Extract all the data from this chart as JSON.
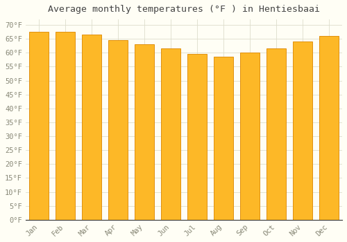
{
  "title": "Average monthly temperatures (°F ) in Hentiesbaai",
  "months": [
    "Jan",
    "Feb",
    "Mar",
    "Apr",
    "May",
    "Jun",
    "Jul",
    "Aug",
    "Sep",
    "Oct",
    "Nov",
    "Dec"
  ],
  "values": [
    67.5,
    67.5,
    66.5,
    64.5,
    63.0,
    61.5,
    59.5,
    58.5,
    60.0,
    61.5,
    64.0,
    66.0
  ],
  "bar_color": "#FDB827",
  "bar_edge_color": "#E09010",
  "background_color": "#FFFEF5",
  "plot_bg_color": "#FFFEF5",
  "grid_color": "#DDDDCC",
  "ytick_labels": [
    "0°F",
    "5°F",
    "10°F",
    "15°F",
    "20°F",
    "25°F",
    "30°F",
    "35°F",
    "40°F",
    "45°F",
    "50°F",
    "55°F",
    "60°F",
    "65°F",
    "70°F"
  ],
  "ytick_values": [
    0,
    5,
    10,
    15,
    20,
    25,
    30,
    35,
    40,
    45,
    50,
    55,
    60,
    65,
    70
  ],
  "ylim": [
    0,
    72
  ],
  "title_fontsize": 9.5,
  "tick_fontsize": 7.5,
  "tick_color": "#888877",
  "title_color": "#444444",
  "spine_color": "#888877",
  "xaxis_bottom_color": "#333333"
}
